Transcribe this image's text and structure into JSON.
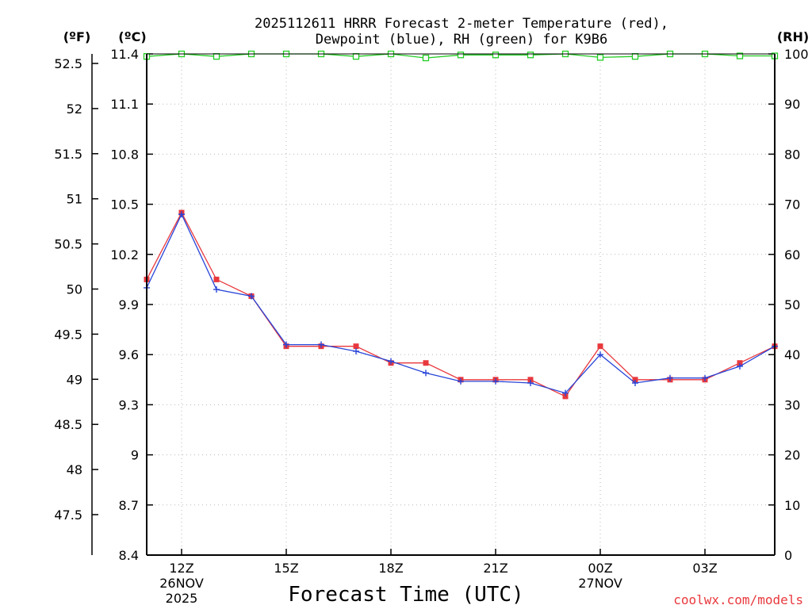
{
  "chart_data": {
    "type": "line",
    "title_lines": [
      "2025112611 HRRR Forecast 2-meter Temperature (red),",
      "Dewpoint (blue), RH (green) for K9B6"
    ],
    "units": {
      "fahrenheit": "(ºF)",
      "celsius": "(ºC)",
      "rh": "(RH)"
    },
    "xlabel": "Forecast Time (UTC)",
    "credit": "coolwx.com/models",
    "x_hours": [
      11,
      12,
      13,
      14,
      15,
      16,
      17,
      18,
      19,
      20,
      21,
      22,
      23,
      24,
      25,
      26,
      27,
      28,
      29
    ],
    "x_range": [
      11,
      29
    ],
    "x_ticks": [
      {
        "hour": 12,
        "label": "12Z",
        "date": "26NOV",
        "year": "2025"
      },
      {
        "hour": 15,
        "label": "15Z"
      },
      {
        "hour": 18,
        "label": "18Z"
      },
      {
        "hour": 21,
        "label": "21Z"
      },
      {
        "hour": 24,
        "label": "00Z",
        "date": "27NOV"
      },
      {
        "hour": 27,
        "label": "03Z"
      }
    ],
    "celsius_range": [
      8.4,
      11.4
    ],
    "celsius_ticks": [
      "11.4",
      "11.1",
      "10.8",
      "10.5",
      "10.2",
      "9.9",
      "9.6",
      "9.3",
      "9",
      "8.7",
      "8.4"
    ],
    "fahrenheit_ticks": [
      "52.5",
      "52",
      "51.5",
      "51",
      "50.5",
      "50",
      "49.5",
      "49",
      "48.5",
      "48",
      "47.5"
    ],
    "rh_range": [
      0,
      100
    ],
    "rh_ticks": [
      "100",
      "90",
      "80",
      "70",
      "60",
      "50",
      "40",
      "30",
      "20",
      "10",
      "0"
    ],
    "series": [
      {
        "name": "Temperature",
        "color": "#e8383d",
        "marker": "square",
        "values": [
          10.05,
          10.45,
          10.05,
          9.95,
          9.65,
          9.65,
          9.65,
          9.55,
          9.55,
          9.45,
          9.45,
          9.45,
          9.35,
          9.65,
          9.45,
          9.45,
          9.45,
          9.55,
          9.65
        ]
      },
      {
        "name": "Dewpoint",
        "color": "#2845d8",
        "marker": "plus",
        "values": [
          10.0,
          10.44,
          9.99,
          9.95,
          9.66,
          9.66,
          9.62,
          9.56,
          9.49,
          9.44,
          9.44,
          9.43,
          9.37,
          9.6,
          9.43,
          9.46,
          9.46,
          9.53,
          9.65
        ]
      },
      {
        "name": "RH",
        "color": "#22cc22",
        "marker": "square-open",
        "values": [
          99.5,
          100,
          99.5,
          100,
          100,
          100,
          99.5,
          100,
          99.2,
          99.8,
          99.8,
          99.8,
          100,
          99.3,
          99.5,
          100,
          100,
          99.6,
          99.6
        ]
      }
    ]
  }
}
